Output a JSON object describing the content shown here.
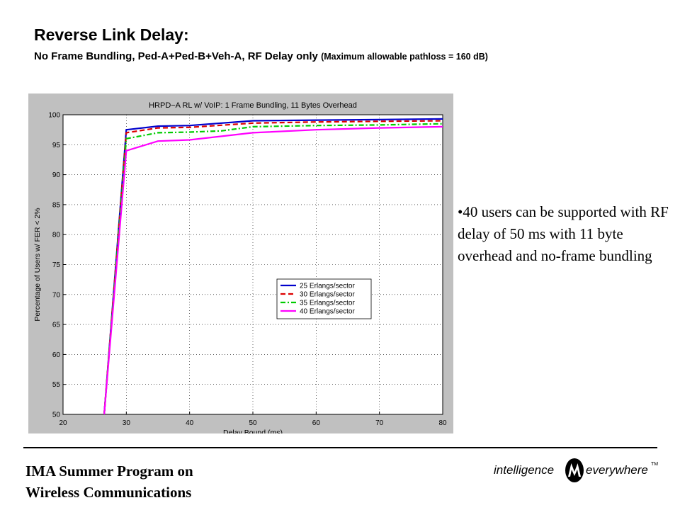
{
  "slide": {
    "title": "Reverse Link Delay:",
    "subtitle_main": "No Frame Bundling, Ped-A+Ped-B+Veh-A, RF Delay only",
    "subtitle_note": "(Maximum allowable pathloss = 160 dB)"
  },
  "bullet": {
    "text": "•40 users can be supported with RF delay of 50 ms with 11 byte overhead and no-frame bundling"
  },
  "footer": {
    "line1": "IMA Summer Program on",
    "line2": "Wireless Communications"
  },
  "brand": {
    "left_word": "intelligence",
    "right_word": "everywhere",
    "tm": "TM",
    "logo_icon": "motorola-logo-icon"
  },
  "colors": {
    "panel": "#c0c0c0",
    "series": [
      "#0000cc",
      "#dd0000",
      "#00cc00",
      "#ff00ff"
    ]
  },
  "chart_data": {
    "type": "line",
    "title": "HRPD−A RL w/ VoIP: 1 Frame Bundling, 11 Bytes Overhead",
    "xlabel": "Delay Bound (ms)",
    "ylabel": "Percentage of Users w/ FER < 2%",
    "xlim": [
      20,
      80
    ],
    "ylim": [
      50,
      100
    ],
    "xticks": [
      20,
      30,
      40,
      50,
      60,
      70,
      80
    ],
    "yticks": [
      50,
      55,
      60,
      65,
      70,
      75,
      80,
      85,
      90,
      95,
      100
    ],
    "grid": true,
    "legend_position": "lower-right",
    "series": [
      {
        "name": "25 Erlangs/sector",
        "style": "solid",
        "x": [
          26.5,
          30,
          35,
          40,
          50,
          60,
          70,
          80
        ],
        "y": [
          50,
          97.5,
          98.1,
          98.2,
          99.0,
          99.1,
          99.2,
          99.3
        ]
      },
      {
        "name": "30 Erlangs/sector",
        "style": "dashed",
        "x": [
          26.5,
          30,
          35,
          40,
          50,
          60,
          70,
          80
        ],
        "y": [
          50,
          97.0,
          97.8,
          97.9,
          98.6,
          98.8,
          98.9,
          99.0
        ]
      },
      {
        "name": "35 Erlangs/sector",
        "style": "dashdot",
        "x": [
          26.5,
          30,
          35,
          40,
          45,
          50,
          60,
          70,
          80
        ],
        "y": [
          50,
          96.0,
          97.0,
          97.1,
          97.3,
          98.0,
          98.2,
          98.3,
          98.5
        ]
      },
      {
        "name": "40 Erlangs/sector",
        "style": "solid",
        "x": [
          26.5,
          30,
          35,
          40,
          50,
          60,
          70,
          80
        ],
        "y": [
          50,
          94.0,
          95.6,
          95.8,
          97.0,
          97.5,
          97.8,
          98.0
        ]
      }
    ]
  }
}
